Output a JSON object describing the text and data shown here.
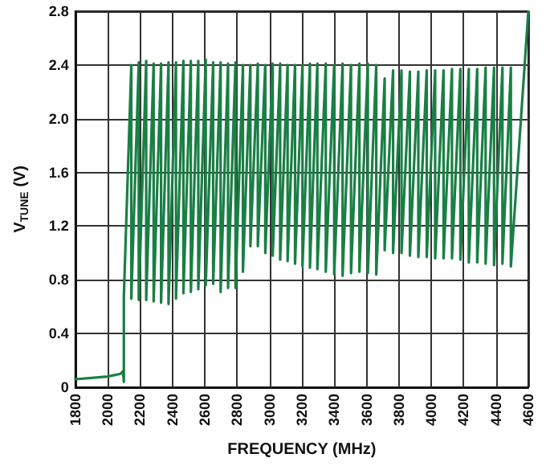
{
  "chart_data": {
    "type": "line",
    "xlabel": "FREQUENCY (MHz)",
    "ylabel": "V$_{TUNE}$ (V)",
    "xlim": [
      1800,
      4600
    ],
    "xticks": [
      1800,
      2000,
      2200,
      2400,
      2600,
      2800,
      3000,
      3200,
      3400,
      3600,
      3800,
      4000,
      4200,
      4400,
      4600
    ],
    "ylim": [
      0,
      2.8
    ],
    "yticks": [
      0,
      0.4,
      0.8,
      1.2,
      1.6,
      {
        "value": 2,
        "label": "2.0"
      },
      2.4,
      2.8
    ],
    "grid": true,
    "marker": "none",
    "line_style": "solid",
    "series": [
      {
        "color": "#1a7f45",
        "x": [
          1800,
          1900,
          2000,
          2080,
          2095,
          2100,
          2100,
          2146,
          2146,
          2192,
          2192,
          2238,
          2238,
          2284,
          2284,
          2330,
          2330,
          2376,
          2376,
          2422,
          2422,
          2468,
          2468,
          2514,
          2514,
          2560,
          2560,
          2606,
          2606,
          2652,
          2652,
          2698,
          2698,
          2744,
          2744,
          2790,
          2790,
          2836,
          2836,
          2882,
          2882,
          2928,
          2928,
          2974,
          2974,
          3020,
          3020,
          3066,
          3066,
          3112,
          3112,
          3158,
          3158,
          3204,
          3204,
          3250,
          3250,
          3296,
          3296,
          3348,
          3348,
          3400,
          3400,
          3452,
          3452,
          3504,
          3504,
          3556,
          3556,
          3608,
          3608,
          3660,
          3660,
          3712,
          3712,
          3764,
          3764,
          3816,
          3816,
          3868,
          3868,
          3920,
          3920,
          3972,
          3972,
          4024,
          4024,
          4076,
          4076,
          4128,
          4128,
          4180,
          4180,
          4232,
          4232,
          4284,
          4284,
          4336,
          4336,
          4388,
          4388,
          4440,
          4440,
          4492,
          4492,
          4600
        ],
        "values": [
          0.06,
          0.07,
          0.08,
          0.1,
          0.12,
          0.04,
          0.68,
          2.4,
          0.66,
          2.42,
          0.65,
          2.43,
          0.65,
          2.41,
          0.64,
          2.41,
          0.63,
          2.42,
          0.62,
          2.42,
          0.66,
          2.43,
          0.7,
          2.43,
          0.71,
          2.43,
          0.73,
          2.44,
          0.76,
          2.42,
          0.77,
          2.42,
          0.71,
          2.41,
          0.74,
          2.42,
          0.74,
          2.4,
          0.86,
          2.4,
          1.05,
          2.41,
          1.05,
          2.4,
          1.0,
          2.41,
          0.98,
          2.41,
          0.95,
          2.4,
          0.94,
          2.4,
          0.92,
          2.4,
          0.9,
          2.41,
          0.89,
          2.41,
          0.88,
          2.41,
          0.86,
          2.4,
          0.84,
          2.41,
          0.83,
          2.4,
          0.85,
          2.41,
          0.86,
          2.41,
          0.85,
          2.4,
          0.84,
          2.3,
          1.02,
          2.36,
          1.0,
          2.36,
          1.0,
          2.35,
          0.98,
          2.35,
          0.97,
          2.36,
          0.97,
          2.36,
          0.96,
          2.36,
          0.96,
          2.37,
          0.96,
          2.37,
          0.95,
          2.37,
          0.93,
          2.37,
          0.93,
          2.38,
          0.92,
          2.38,
          0.91,
          2.38,
          0.92,
          2.38,
          0.9,
          2.8
        ]
      }
    ]
  }
}
